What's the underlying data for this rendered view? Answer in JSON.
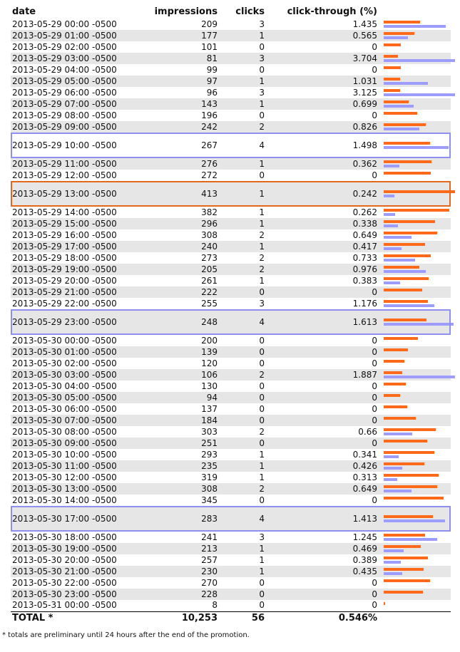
{
  "headers": {
    "date": "date",
    "impressions": "impressions",
    "clicks": "clicks",
    "ctr": "click-through (%)"
  },
  "rows": [
    {
      "date": "2013-05-29 00:00 -0500",
      "impressions": "209",
      "clicks": "3",
      "ctr": "1.435"
    },
    {
      "date": "2013-05-29 01:00 -0500",
      "impressions": "177",
      "clicks": "1",
      "ctr": "0.565"
    },
    {
      "date": "2013-05-29 02:00 -0500",
      "impressions": "101",
      "clicks": "0",
      "ctr": "0"
    },
    {
      "date": "2013-05-29 03:00 -0500",
      "impressions": "81",
      "clicks": "3",
      "ctr": "3.704"
    },
    {
      "date": "2013-05-29 04:00 -0500",
      "impressions": "99",
      "clicks": "0",
      "ctr": "0"
    },
    {
      "date": "2013-05-29 05:00 -0500",
      "impressions": "97",
      "clicks": "1",
      "ctr": "1.031"
    },
    {
      "date": "2013-05-29 06:00 -0500",
      "impressions": "96",
      "clicks": "3",
      "ctr": "3.125"
    },
    {
      "date": "2013-05-29 07:00 -0500",
      "impressions": "143",
      "clicks": "1",
      "ctr": "0.699"
    },
    {
      "date": "2013-05-29 08:00 -0500",
      "impressions": "196",
      "clicks": "0",
      "ctr": "0"
    },
    {
      "date": "2013-05-29 09:00 -0500",
      "impressions": "242",
      "clicks": "2",
      "ctr": "0.826"
    },
    {
      "date": "2013-05-29 10:00 -0500",
      "impressions": "267",
      "clicks": "4",
      "ctr": "1.498",
      "highlight": "blue"
    },
    {
      "date": "2013-05-29 11:00 -0500",
      "impressions": "276",
      "clicks": "1",
      "ctr": "0.362"
    },
    {
      "date": "2013-05-29 12:00 -0500",
      "impressions": "272",
      "clicks": "0",
      "ctr": "0"
    },
    {
      "date": "2013-05-29 13:00 -0500",
      "impressions": "413",
      "clicks": "1",
      "ctr": "0.242",
      "highlight": "orange"
    },
    {
      "date": "2013-05-29 14:00 -0500",
      "impressions": "382",
      "clicks": "1",
      "ctr": "0.262"
    },
    {
      "date": "2013-05-29 15:00 -0500",
      "impressions": "296",
      "clicks": "1",
      "ctr": "0.338"
    },
    {
      "date": "2013-05-29 16:00 -0500",
      "impressions": "308",
      "clicks": "2",
      "ctr": "0.649"
    },
    {
      "date": "2013-05-29 17:00 -0500",
      "impressions": "240",
      "clicks": "1",
      "ctr": "0.417"
    },
    {
      "date": "2013-05-29 18:00 -0500",
      "impressions": "273",
      "clicks": "2",
      "ctr": "0.733"
    },
    {
      "date": "2013-05-29 19:00 -0500",
      "impressions": "205",
      "clicks": "2",
      "ctr": "0.976"
    },
    {
      "date": "2013-05-29 20:00 -0500",
      "impressions": "261",
      "clicks": "1",
      "ctr": "0.383"
    },
    {
      "date": "2013-05-29 21:00 -0500",
      "impressions": "222",
      "clicks": "0",
      "ctr": "0"
    },
    {
      "date": "2013-05-29 22:00 -0500",
      "impressions": "255",
      "clicks": "3",
      "ctr": "1.176"
    },
    {
      "date": "2013-05-29 23:00 -0500",
      "impressions": "248",
      "clicks": "4",
      "ctr": "1.613",
      "highlight": "blue"
    },
    {
      "date": "2013-05-30 00:00 -0500",
      "impressions": "200",
      "clicks": "0",
      "ctr": "0"
    },
    {
      "date": "2013-05-30 01:00 -0500",
      "impressions": "139",
      "clicks": "0",
      "ctr": "0"
    },
    {
      "date": "2013-05-30 02:00 -0500",
      "impressions": "120",
      "clicks": "0",
      "ctr": "0"
    },
    {
      "date": "2013-05-30 03:00 -0500",
      "impressions": "106",
      "clicks": "2",
      "ctr": "1.887"
    },
    {
      "date": "2013-05-30 04:00 -0500",
      "impressions": "130",
      "clicks": "0",
      "ctr": "0"
    },
    {
      "date": "2013-05-30 05:00 -0500",
      "impressions": "94",
      "clicks": "0",
      "ctr": "0"
    },
    {
      "date": "2013-05-30 06:00 -0500",
      "impressions": "137",
      "clicks": "0",
      "ctr": "0"
    },
    {
      "date": "2013-05-30 07:00 -0500",
      "impressions": "184",
      "clicks": "0",
      "ctr": "0"
    },
    {
      "date": "2013-05-30 08:00 -0500",
      "impressions": "303",
      "clicks": "2",
      "ctr": "0.66"
    },
    {
      "date": "2013-05-30 09:00 -0500",
      "impressions": "251",
      "clicks": "0",
      "ctr": "0"
    },
    {
      "date": "2013-05-30 10:00 -0500",
      "impressions": "293",
      "clicks": "1",
      "ctr": "0.341"
    },
    {
      "date": "2013-05-30 11:00 -0500",
      "impressions": "235",
      "clicks": "1",
      "ctr": "0.426"
    },
    {
      "date": "2013-05-30 12:00 -0500",
      "impressions": "319",
      "clicks": "1",
      "ctr": "0.313"
    },
    {
      "date": "2013-05-30 13:00 -0500",
      "impressions": "308",
      "clicks": "2",
      "ctr": "0.649"
    },
    {
      "date": "2013-05-30 14:00 -0500",
      "impressions": "345",
      "clicks": "0",
      "ctr": "0"
    },
    {
      "date": "2013-05-30 17:00 -0500",
      "impressions": "283",
      "clicks": "4",
      "ctr": "1.413",
      "highlight": "blue"
    },
    {
      "date": "2013-05-30 18:00 -0500",
      "impressions": "241",
      "clicks": "3",
      "ctr": "1.245"
    },
    {
      "date": "2013-05-30 19:00 -0500",
      "impressions": "213",
      "clicks": "1",
      "ctr": "0.469"
    },
    {
      "date": "2013-05-30 20:00 -0500",
      "impressions": "257",
      "clicks": "1",
      "ctr": "0.389"
    },
    {
      "date": "2013-05-30 21:00 -0500",
      "impressions": "230",
      "clicks": "1",
      "ctr": "0.435"
    },
    {
      "date": "2013-05-30 22:00 -0500",
      "impressions": "270",
      "clicks": "0",
      "ctr": "0"
    },
    {
      "date": "2013-05-30 23:00 -0500",
      "impressions": "228",
      "clicks": "0",
      "ctr": "0"
    },
    {
      "date": "2013-05-31 00:00 -0500",
      "impressions": "8",
      "clicks": "0",
      "ctr": "0"
    }
  ],
  "total": {
    "label": "TOTAL *",
    "impressions": "10,253",
    "clicks": "56",
    "ctr": "0.546%"
  },
  "footnote": "* totals are preliminary until 24 hours after the end of the promotion.",
  "colors": {
    "impressions_bar": "#ff6a1a",
    "clicks_bar": "#9d9dff",
    "row_stripe": "#e6e6e6",
    "highlight_blue": "#8f8fef",
    "highlight_orange": "#e3671d"
  }
}
